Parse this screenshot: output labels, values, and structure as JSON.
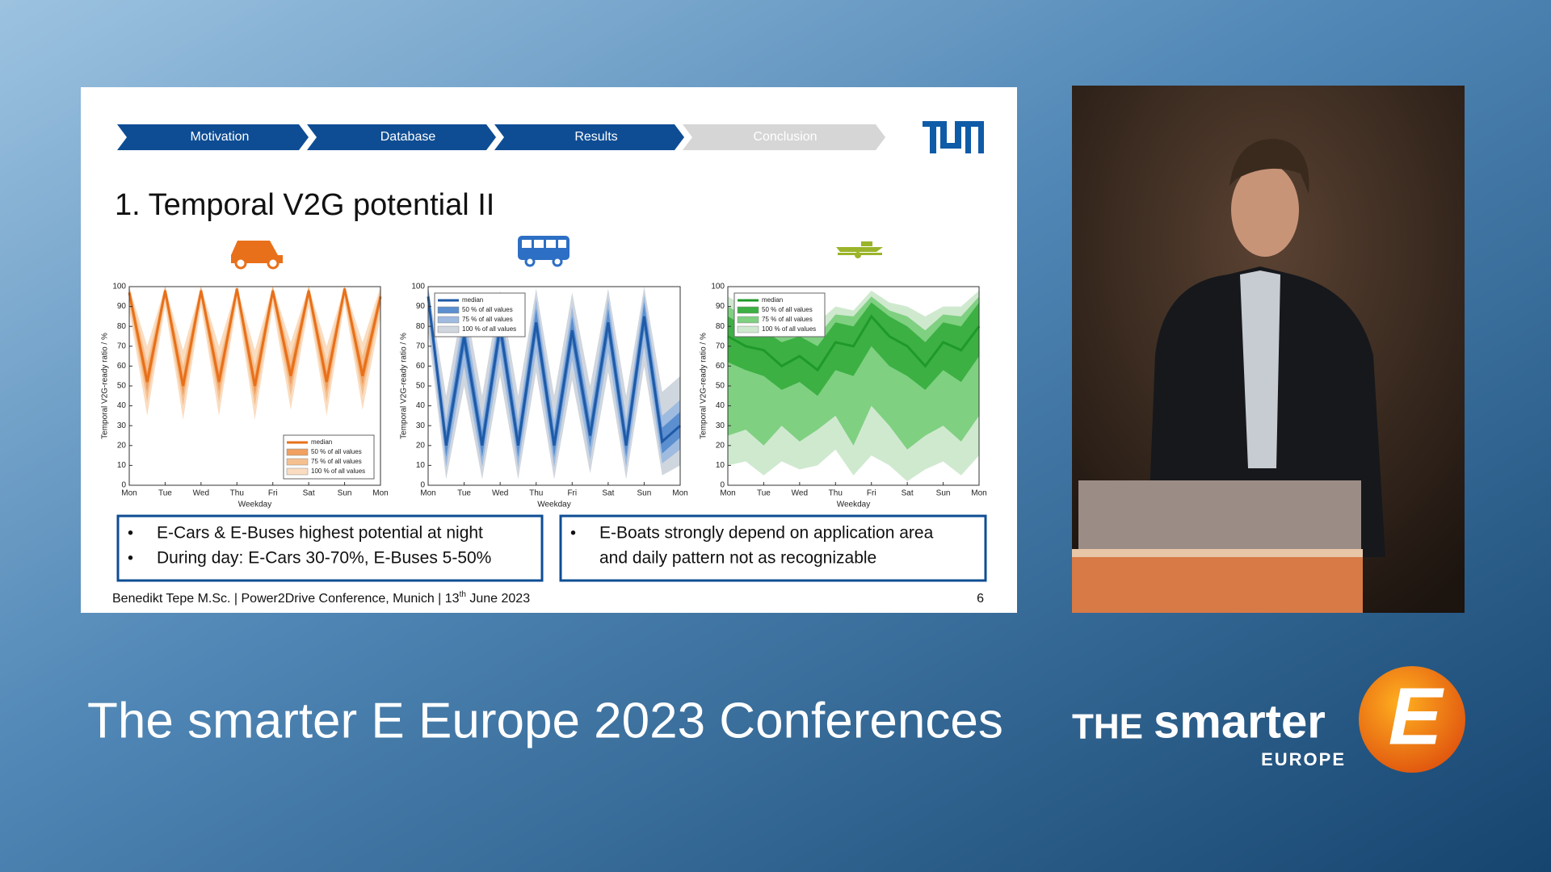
{
  "slide": {
    "nav": [
      "Motivation",
      "Database",
      "Results",
      "Conclusion"
    ],
    "title": "1. Temporal V2G potential II",
    "bullets_left": [
      "E-Cars & E-Buses highest potential at night",
      "During day: E-Cars 30-70%, E-Buses 5-50%"
    ],
    "bullets_right": [
      "E-Boats strongly depend on application area",
      "and daily pattern not as recognizable"
    ],
    "footer": {
      "text": "Benedikt Tepe M.Sc. | Power2Drive Conference, Munich | 13",
      "sup": "th",
      "text_end": " June 2023",
      "page": "6"
    }
  },
  "chart_data": [
    {
      "type": "line",
      "xlabel": "Weekday",
      "ylabel": "Temporal V2G-ready ratio / %",
      "x": [
        0,
        0.5,
        1,
        1.5,
        2,
        2.5,
        3,
        3.5,
        4,
        4.5,
        5,
        5.5,
        6,
        6.5,
        7
      ],
      "xlim": [
        0,
        7
      ],
      "xticks": [
        {
          "value": 0,
          "label": "Mon"
        },
        {
          "value": 1,
          "label": "Tue"
        },
        {
          "value": 2,
          "label": "Wed"
        },
        {
          "value": 3,
          "label": "Thu"
        },
        {
          "value": 4,
          "label": "Fri"
        },
        {
          "value": 5,
          "label": "Sat"
        },
        {
          "value": 6,
          "label": "Sun"
        },
        {
          "value": 7,
          "label": "Mon"
        }
      ],
      "ylim": [
        0,
        100
      ],
      "yticks": [
        0,
        10,
        20,
        30,
        40,
        50,
        60,
        70,
        80,
        90,
        100
      ],
      "legend": "lower right",
      "series": [
        {
          "name": "median",
          "color": "#e8701a",
          "values": [
            97,
            52,
            98,
            50,
            98,
            52,
            99,
            50,
            98,
            55,
            98,
            52,
            99,
            55,
            95
          ]
        },
        {
          "name": "50 % of all values",
          "color": "#f0a060",
          "lower": [
            94,
            47,
            96,
            45,
            96,
            47,
            97,
            45,
            96,
            50,
            96,
            47,
            97,
            50,
            92
          ],
          "upper": [
            99,
            57,
            100,
            55,
            100,
            57,
            100,
            55,
            100,
            60,
            100,
            57,
            100,
            60,
            97
          ]
        },
        {
          "name": "75 % of all values",
          "color": "#f5c090",
          "lower": [
            92,
            42,
            94,
            40,
            94,
            42,
            95,
            40,
            94,
            45,
            94,
            42,
            95,
            45,
            90
          ],
          "upper": [
            100,
            62,
            100,
            60,
            100,
            62,
            100,
            60,
            100,
            65,
            100,
            62,
            100,
            65,
            98
          ]
        },
        {
          "name": "100 % of all values",
          "color": "#fadcc0",
          "lower": [
            88,
            35,
            90,
            33,
            90,
            35,
            92,
            33,
            90,
            38,
            90,
            35,
            92,
            38,
            85
          ],
          "upper": [
            100,
            70,
            100,
            68,
            100,
            70,
            100,
            68,
            100,
            72,
            100,
            70,
            100,
            72,
            100
          ]
        }
      ]
    },
    {
      "type": "line",
      "xlabel": "Weekday",
      "ylabel": "Temporal V2G-ready ratio / %",
      "x": [
        0,
        0.5,
        1,
        1.5,
        2,
        2.5,
        3,
        3.5,
        4,
        4.5,
        5,
        5.5,
        6,
        6.5,
        7
      ],
      "xlim": [
        0,
        7
      ],
      "xticks": [
        {
          "value": 0,
          "label": "Mon"
        },
        {
          "value": 1,
          "label": "Tue"
        },
        {
          "value": 2,
          "label": "Wed"
        },
        {
          "value": 3,
          "label": "Thu"
        },
        {
          "value": 4,
          "label": "Fri"
        },
        {
          "value": 5,
          "label": "Sat"
        },
        {
          "value": 6,
          "label": "Sun"
        },
        {
          "value": 7,
          "label": "Mon"
        }
      ],
      "ylim": [
        0,
        100
      ],
      "yticks": [
        0,
        10,
        20,
        30,
        40,
        50,
        60,
        70,
        80,
        90,
        100
      ],
      "legend": "upper left",
      "series": [
        {
          "name": "median",
          "color": "#1f5aa6",
          "values": [
            95,
            20,
            75,
            20,
            80,
            20,
            82,
            20,
            78,
            25,
            82,
            20,
            85,
            22,
            30
          ]
        },
        {
          "name": "50 % of all values",
          "color": "#5b8fcf",
          "lower": [
            90,
            14,
            68,
            14,
            73,
            14,
            75,
            14,
            71,
            19,
            75,
            14,
            78,
            16,
            24
          ],
          "upper": [
            99,
            27,
            82,
            27,
            87,
            27,
            89,
            27,
            85,
            32,
            89,
            27,
            92,
            29,
            37
          ]
        },
        {
          "name": "75 % of all values",
          "color": "#9fbbe0",
          "lower": [
            85,
            9,
            60,
            9,
            65,
            9,
            67,
            9,
            63,
            13,
            67,
            9,
            70,
            11,
            18
          ],
          "upper": [
            100,
            33,
            88,
            33,
            92,
            33,
            94,
            33,
            90,
            38,
            94,
            33,
            96,
            35,
            43
          ]
        },
        {
          "name": "100 % of all values",
          "color": "#d0d6de",
          "lower": [
            78,
            3,
            50,
            3,
            55,
            3,
            57,
            3,
            53,
            6,
            57,
            3,
            60,
            5,
            10
          ],
          "upper": [
            100,
            45,
            95,
            45,
            98,
            45,
            99,
            45,
            97,
            50,
            99,
            45,
            100,
            47,
            55
          ]
        }
      ]
    },
    {
      "type": "line",
      "xlabel": "Weekday",
      "ylabel": "Temporal V2G-ready ratio / %",
      "x": [
        0,
        0.5,
        1,
        1.5,
        2,
        2.5,
        3,
        3.5,
        4,
        4.5,
        5,
        5.5,
        6,
        6.5,
        7
      ],
      "xlim": [
        0,
        7
      ],
      "xticks": [
        {
          "value": 0,
          "label": "Mon"
        },
        {
          "value": 1,
          "label": "Tue"
        },
        {
          "value": 2,
          "label": "Wed"
        },
        {
          "value": 3,
          "label": "Thu"
        },
        {
          "value": 4,
          "label": "Fri"
        },
        {
          "value": 5,
          "label": "Sat"
        },
        {
          "value": 6,
          "label": "Sun"
        },
        {
          "value": 7,
          "label": "Mon"
        }
      ],
      "ylim": [
        0,
        100
      ],
      "yticks": [
        0,
        10,
        20,
        30,
        40,
        50,
        60,
        70,
        80,
        90,
        100
      ],
      "legend": "upper left",
      "series": [
        {
          "name": "median",
          "color": "#1f9a2a",
          "values": [
            75,
            70,
            68,
            60,
            65,
            58,
            72,
            70,
            85,
            75,
            70,
            60,
            72,
            68,
            80
          ]
        },
        {
          "name": "50 % of all values",
          "color": "#3cb043",
          "lower": [
            62,
            58,
            55,
            48,
            52,
            45,
            58,
            55,
            70,
            60,
            55,
            48,
            58,
            52,
            65
          ],
          "upper": [
            85,
            80,
            78,
            72,
            75,
            70,
            82,
            80,
            92,
            85,
            80,
            72,
            82,
            80,
            92
          ]
        },
        {
          "name": "75 % of all values",
          "color": "#7fd081",
          "lower": [
            25,
            28,
            20,
            30,
            22,
            28,
            35,
            20,
            40,
            30,
            18,
            25,
            30,
            22,
            35
          ],
          "upper": [
            90,
            85,
            82,
            78,
            80,
            75,
            86,
            85,
            95,
            88,
            85,
            78,
            86,
            85,
            95
          ]
        },
        {
          "name": "100 % of all values",
          "color": "#cfe9cf",
          "lower": [
            10,
            12,
            5,
            12,
            8,
            10,
            18,
            5,
            15,
            10,
            2,
            8,
            12,
            5,
            15
          ],
          "upper": [
            95,
            90,
            88,
            85,
            85,
            82,
            90,
            88,
            98,
            92,
            90,
            85,
            90,
            90,
            98
          ]
        }
      ]
    }
  ],
  "banner": {
    "title": "The smarter E Europe 2023 Conferences",
    "logo_the": "THE",
    "logo_smarter": "smarter",
    "logo_europe": "EUROPE",
    "logo_e": "E"
  }
}
